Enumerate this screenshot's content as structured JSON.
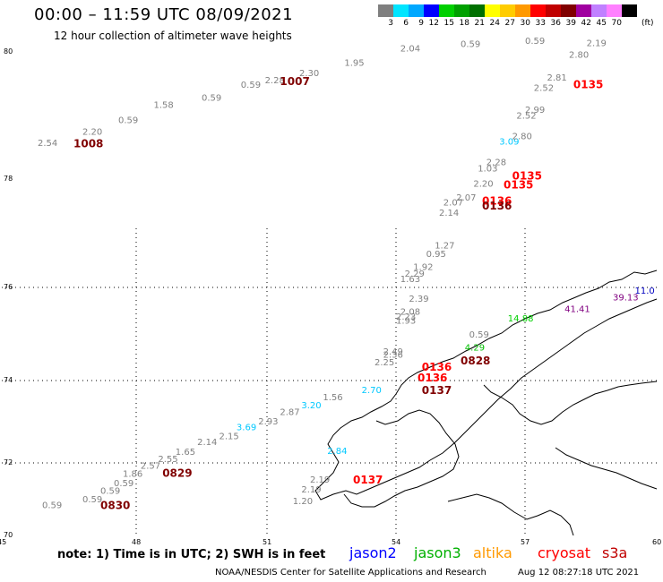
{
  "header": {
    "title": "00:00 – 11:59 UTC 08/09/2021",
    "subtitle": "12 hour collection of altimeter wave heights"
  },
  "color_scale": {
    "colors": [
      "#7f7f7f",
      "#00e5ff",
      "#00a8ff",
      "#0000ff",
      "#00d000",
      "#00a000",
      "#007000",
      "#ffff00",
      "#ffcc00",
      "#ff9900",
      "#ff0000",
      "#c00000",
      "#800000",
      "#a000a0",
      "#c080ff",
      "#ff80ff",
      "#000000"
    ],
    "labels": [
      "3",
      "6",
      "9",
      "12",
      "15",
      "18",
      "21",
      "24",
      "27",
      "30",
      "33",
      "36",
      "39",
      "42",
      "45",
      "70"
    ],
    "unit": "(ft)"
  },
  "axes": {
    "y_labels": [
      "80",
      "78",
      "76",
      "74",
      "72",
      "70"
    ],
    "x_labels": [
      "45",
      "48",
      "51",
      "54",
      "57",
      "60"
    ]
  },
  "annotations": [
    {
      "t": "2.54",
      "c": "#808080",
      "lon": 45.8,
      "lat": 78.52
    },
    {
      "t": "2.20",
      "c": "#808080",
      "lon": 46.8,
      "lat": 78.7
    },
    {
      "t": "1008",
      "c": "#800000",
      "lon": 46.6,
      "lat": 78.5,
      "b": true
    },
    {
      "t": "0.59",
      "c": "#808080",
      "lon": 47.6,
      "lat": 78.88
    },
    {
      "t": "1.58",
      "c": "#808080",
      "lon": 48.4,
      "lat": 79.12
    },
    {
      "t": "0.59",
      "c": "#808080",
      "lon": 49.5,
      "lat": 79.23
    },
    {
      "t": "0.59",
      "c": "#808080",
      "lon": 50.4,
      "lat": 79.44
    },
    {
      "t": "2.28",
      "c": "#808080",
      "lon": 50.95,
      "lat": 79.51
    },
    {
      "t": "2.30",
      "c": "#808080",
      "lon": 51.75,
      "lat": 79.62
    },
    {
      "t": "1007",
      "c": "#800000",
      "lon": 51.3,
      "lat": 79.48,
      "b": true
    },
    {
      "t": "1.95",
      "c": "#808080",
      "lon": 52.8,
      "lat": 79.78
    },
    {
      "t": "2.04",
      "c": "#808080",
      "lon": 54.1,
      "lat": 80.01
    },
    {
      "t": "0.59",
      "c": "#808080",
      "lon": 55.5,
      "lat": 80.08
    },
    {
      "t": "0.59",
      "c": "#808080",
      "lon": 57.0,
      "lat": 80.13
    },
    {
      "t": "2.19",
      "c": "#808080",
      "lon": 58.4,
      "lat": 80.09
    },
    {
      "t": "2.80",
      "c": "#808080",
      "lon": 58.0,
      "lat": 79.91
    },
    {
      "t": "2.81",
      "c": "#808080",
      "lon": 57.5,
      "lat": 79.55
    },
    {
      "t": "2.52",
      "c": "#808080",
      "lon": 57.2,
      "lat": 79.39
    },
    {
      "t": "0135",
      "c": "#ff0000",
      "lon": 58.1,
      "lat": 79.43,
      "b": true
    },
    {
      "t": "2.99",
      "c": "#808080",
      "lon": 57.0,
      "lat": 79.04
    },
    {
      "t": "2.52",
      "c": "#808080",
      "lon": 56.8,
      "lat": 78.95
    },
    {
      "t": "3.09",
      "c": "#00c8ff",
      "lon": 56.4,
      "lat": 78.54
    },
    {
      "t": "2.80",
      "c": "#808080",
      "lon": 56.7,
      "lat": 78.63
    },
    {
      "t": "2.28",
      "c": "#808080",
      "lon": 56.1,
      "lat": 78.22
    },
    {
      "t": "1.03",
      "c": "#808080",
      "lon": 55.9,
      "lat": 78.12
    },
    {
      "t": "0135",
      "c": "#ff0000",
      "lon": 56.7,
      "lat": 77.99,
      "b": true
    },
    {
      "t": "2.20",
      "c": "#808080",
      "lon": 55.8,
      "lat": 77.86
    },
    {
      "t": "0135",
      "c": "#ff0000",
      "lon": 56.5,
      "lat": 77.83,
      "b": true
    },
    {
      "t": "2.07",
      "c": "#808080",
      "lon": 55.4,
      "lat": 77.6
    },
    {
      "t": "2.07",
      "c": "#808080",
      "lon": 55.1,
      "lat": 77.51
    },
    {
      "t": "0136",
      "c": "#ff0000",
      "lon": 56.0,
      "lat": 77.53,
      "b": true
    },
    {
      "t": "2.14",
      "c": "#808080",
      "lon": 55.0,
      "lat": 77.32
    },
    {
      "t": "0136",
      "c": "#800000",
      "lon": 56.0,
      "lat": 77.44,
      "b": true
    },
    {
      "t": "1.27",
      "c": "#808080",
      "lon": 54.9,
      "lat": 76.72
    },
    {
      "t": "0.95",
      "c": "#808080",
      "lon": 54.7,
      "lat": 76.56
    },
    {
      "t": "1.92",
      "c": "#808080",
      "lon": 54.4,
      "lat": 76.32
    },
    {
      "t": "2.29",
      "c": "#808080",
      "lon": 54.2,
      "lat": 76.2
    },
    {
      "t": "1.63",
      "c": "#808080",
      "lon": 54.1,
      "lat": 76.1
    },
    {
      "t": "2.39",
      "c": "#808080",
      "lon": 54.3,
      "lat": 75.69
    },
    {
      "t": "2.08",
      "c": "#808080",
      "lon": 54.1,
      "lat": 75.41
    },
    {
      "t": "2.23",
      "c": "#808080",
      "lon": 54.0,
      "lat": 75.31
    },
    {
      "t": "1.93",
      "c": "#808080",
      "lon": 54.0,
      "lat": 75.22
    },
    {
      "t": "0.59",
      "c": "#808080",
      "lon": 55.7,
      "lat": 74.92
    },
    {
      "t": "14.88",
      "c": "#00d000",
      "lon": 56.6,
      "lat": 75.27
    },
    {
      "t": "4.29",
      "c": "#00c000",
      "lon": 55.6,
      "lat": 74.64
    },
    {
      "t": "2.49",
      "c": "#808080",
      "lon": 53.7,
      "lat": 74.56
    },
    {
      "t": "2.36",
      "c": "#808080",
      "lon": 53.7,
      "lat": 74.49
    },
    {
      "t": "2.25",
      "c": "#808080",
      "lon": 53.5,
      "lat": 74.33
    },
    {
      "t": "0828",
      "c": "#800000",
      "lon": 55.5,
      "lat": 74.35,
      "b": true
    },
    {
      "t": "0136",
      "c": "#ff0000",
      "lon": 54.6,
      "lat": 74.21,
      "b": true
    },
    {
      "t": "0136",
      "c": "#ff0000",
      "lon": 54.5,
      "lat": 73.98,
      "b": true
    },
    {
      "t": "0137",
      "c": "#800000",
      "lon": 54.6,
      "lat": 73.67,
      "b": true
    },
    {
      "t": "2.70",
      "c": "#00c8ff",
      "lon": 53.2,
      "lat": 73.7
    },
    {
      "t": "1.56",
      "c": "#808080",
      "lon": 52.3,
      "lat": 73.52
    },
    {
      "t": "3.20",
      "c": "#00c8ff",
      "lon": 51.8,
      "lat": 73.33
    },
    {
      "t": "2.87",
      "c": "#808080",
      "lon": 51.3,
      "lat": 73.16
    },
    {
      "t": "2.93",
      "c": "#808080",
      "lon": 50.8,
      "lat": 72.94
    },
    {
      "t": "3.69",
      "c": "#00c8ff",
      "lon": 50.3,
      "lat": 72.79
    },
    {
      "t": "2.15",
      "c": "#808080",
      "lon": 49.9,
      "lat": 72.58
    },
    {
      "t": "2.14",
      "c": "#808080",
      "lon": 49.4,
      "lat": 72.44
    },
    {
      "t": "1.65",
      "c": "#808080",
      "lon": 48.9,
      "lat": 72.2
    },
    {
      "t": "2.55",
      "c": "#808080",
      "lon": 48.5,
      "lat": 72.02
    },
    {
      "t": "2.57",
      "c": "#808080",
      "lon": 48.1,
      "lat": 71.84
    },
    {
      "t": "1.86",
      "c": "#808080",
      "lon": 47.7,
      "lat": 71.62
    },
    {
      "t": "0829",
      "c": "#800000",
      "lon": 48.6,
      "lat": 71.62,
      "b": true
    },
    {
      "t": "0.59",
      "c": "#808080",
      "lon": 47.5,
      "lat": 71.36
    },
    {
      "t": "0.59",
      "c": "#808080",
      "lon": 47.2,
      "lat": 71.15
    },
    {
      "t": "0.59",
      "c": "#808080",
      "lon": 46.8,
      "lat": 70.91
    },
    {
      "t": "0.59",
      "c": "#808080",
      "lon": 45.9,
      "lat": 70.75
    },
    {
      "t": "0830",
      "c": "#800000",
      "lon": 47.2,
      "lat": 70.73,
      "b": true
    },
    {
      "t": "2.84",
      "c": "#00c8ff",
      "lon": 52.4,
      "lat": 72.22
    },
    {
      "t": "2.19",
      "c": "#808080",
      "lon": 52.0,
      "lat": 71.46
    },
    {
      "t": "2.19",
      "c": "#808080",
      "lon": 51.8,
      "lat": 71.19
    },
    {
      "t": "1.20",
      "c": "#808080",
      "lon": 51.6,
      "lat": 70.87
    },
    {
      "t": "0137",
      "c": "#ff0000",
      "lon": 53.0,
      "lat": 71.43,
      "b": true
    },
    {
      "t": "11.0",
      "c": "#0000c0",
      "lon": 59.5,
      "lat": 75.87
    },
    {
      "t": "39.13",
      "c": "#800080",
      "lon": 59.0,
      "lat": 75.72
    },
    {
      "t": "41.41",
      "c": "#800080",
      "lon": 57.9,
      "lat": 75.47
    }
  ],
  "footer": {
    "note": "note: 1) Time is in UTC; 2) SWH is in feet",
    "missions": [
      {
        "label": "jason2",
        "color": "#0000ff"
      },
      {
        "label": "jason3",
        "color": "#00b000"
      },
      {
        "label": "altika",
        "color": "#ff9900"
      },
      {
        "label": "cryosat",
        "color": "#ff0000"
      },
      {
        "label": "s3a",
        "color": "#c00000"
      }
    ],
    "credit": "NOAA/NESDIS Center for Satellite Applications and Research",
    "timestamp": "Aug 12 08:27:18 UTC 2021"
  }
}
